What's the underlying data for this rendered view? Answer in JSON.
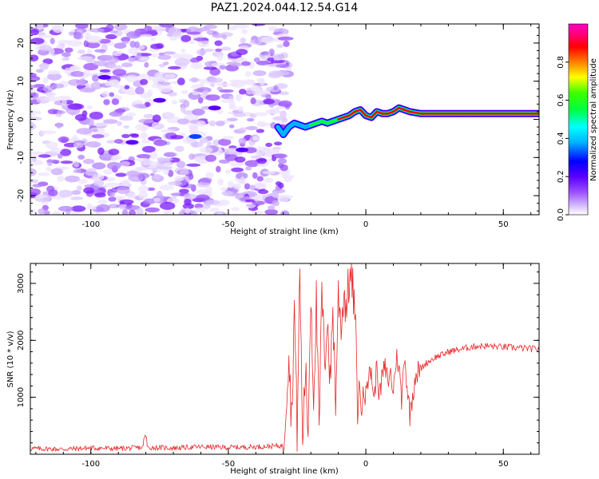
{
  "title": "PAZ1.2024.044.12.54.G14",
  "colors": {
    "snr_line": "#e8292b",
    "axis": "#000000"
  },
  "chart_data": [
    {
      "type": "heatmap",
      "name": "spectrogram",
      "xlabel": "Height of straight line (km)",
      "ylabel": "Frequency (Hz)",
      "xlim": [
        -122,
        63
      ],
      "ylim": [
        -25,
        25
      ],
      "xticks": [
        -100,
        -50,
        0,
        50
      ],
      "yticks": [
        -20,
        -10,
        0,
        10,
        20
      ],
      "colorbar": {
        "label": "Normalized spectral amplitude",
        "range": [
          0,
          1
        ],
        "ticks": [
          "0.0",
          "0.2",
          "0.4",
          "0.6",
          "0.8"
        ],
        "colormap": [
          "#ffffff",
          "#dcc8ff",
          "#9a4dff",
          "#5a00ff",
          "#0000ff",
          "#00b4ff",
          "#00ffff",
          "#00ff40",
          "#40ff00",
          "#ffff00",
          "#ff8000",
          "#ff0000",
          "#ff0080",
          "#ff00c0"
        ]
      },
      "noise_region": {
        "x": [
          -122,
          -32
        ],
        "y": [
          -25,
          25
        ],
        "level": 0.15
      },
      "signal_track": {
        "x": [
          -32,
          -30,
          -28,
          -26,
          -24,
          -22,
          -20,
          -18,
          -16,
          -14,
          -12,
          -10,
          -8,
          -6,
          -4,
          -2,
          0,
          2,
          4,
          6,
          8,
          10,
          12,
          14,
          16,
          20,
          25,
          30,
          35,
          40,
          45,
          50,
          55,
          63
        ],
        "frequency": [
          -2,
          -4,
          -2,
          -1,
          -1.5,
          -2,
          -1.5,
          -1,
          -0.5,
          -1,
          -0.5,
          0,
          0.5,
          1,
          2,
          2.5,
          1,
          0.5,
          2,
          1.5,
          1.5,
          2,
          3,
          2.5,
          2,
          1.5,
          1.5,
          1.5,
          1.5,
          1.5,
          1.5,
          1.5,
          1.5,
          1.5
        ],
        "amplitude": [
          0.3,
          0.35,
          0.3,
          0.4,
          0.45,
          0.5,
          0.55,
          0.6,
          0.7,
          0.65,
          0.6,
          0.7,
          0.75,
          0.7,
          0.8,
          0.9,
          0.75,
          0.7,
          0.85,
          0.8,
          0.85,
          0.9,
          0.9,
          0.85,
          0.8,
          0.85,
          0.9,
          0.9,
          0.9,
          0.9,
          0.9,
          0.9,
          0.9,
          0.9
        ]
      }
    },
    {
      "type": "line",
      "name": "snr",
      "xlabel": "Height of straight line (km)",
      "ylabel": "SNR (10 * v/v)",
      "xlim": [
        -122,
        63
      ],
      "ylim": [
        0,
        3350
      ],
      "xticks": [
        -100,
        -50,
        0,
        50
      ],
      "yticks": [
        1000,
        2000,
        3000
      ],
      "series": [
        {
          "x": [
            -122,
            -110,
            -100,
            -90,
            -80,
            -70,
            -60,
            -50,
            -40,
            -30,
            -28,
            -27,
            -26,
            -25,
            -24,
            -23,
            -22,
            -21,
            -20,
            -19,
            -18,
            -17,
            -16,
            -15,
            -14,
            -13,
            -12,
            -11,
            -10,
            -9,
            -8,
            -7,
            -6,
            -5,
            -4,
            -3,
            -2,
            -1,
            0,
            1,
            2,
            3,
            4,
            5,
            6,
            7,
            8,
            9,
            10,
            11,
            12,
            13,
            14,
            15,
            16,
            18,
            20,
            22,
            25,
            28,
            30,
            35,
            40,
            45,
            50,
            55,
            60,
            63
          ],
          "values": [
            100,
            90,
            110,
            100,
            120,
            110,
            130,
            120,
            130,
            150,
            1800,
            600,
            2600,
            400,
            3200,
            250,
            1500,
            400,
            2900,
            1000,
            2700,
            300,
            2900,
            1500,
            2500,
            1200,
            2600,
            900,
            2800,
            2300,
            2800,
            2600,
            3100,
            3000,
            2500,
            900,
            1100,
            800,
            1400,
            1300,
            1500,
            900,
            1600,
            1000,
            1400,
            1500,
            1300,
            1400,
            1100,
            1700,
            1600,
            900,
            1800,
            1200,
            700,
            1400,
            1500,
            1600,
            1700,
            1750,
            1800,
            1850,
            1900,
            1900,
            1880,
            1870,
            1850,
            1850
          ]
        }
      ]
    }
  ]
}
